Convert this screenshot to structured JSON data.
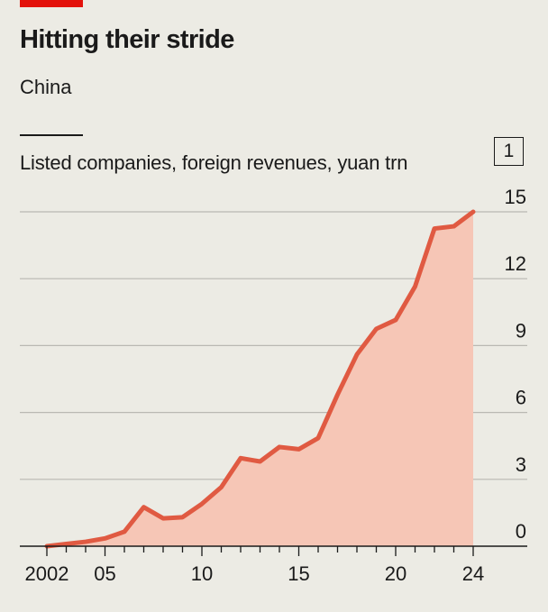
{
  "header": {
    "title": "Hitting their stride",
    "subtitle": "China",
    "description": "Listed companies, foreign revenues, yuan trn",
    "chart_number": "1"
  },
  "colors": {
    "accent_red": "#e3120b",
    "line": "#e05a42",
    "area": "#f6c6b6",
    "background": "#ecebe4",
    "grid": "#b9b8b2"
  },
  "chart_data": {
    "type": "area",
    "title": "Hitting their stride",
    "subtitle": "China",
    "ylabel": "Listed companies, foreign revenues, yuan trn",
    "xlabel": "",
    "ylim": [
      0,
      15
    ],
    "xlim": [
      2002,
      2024
    ],
    "y_ticks": [
      0,
      3,
      6,
      9,
      12,
      15
    ],
    "y_tick_labels": [
      "0",
      "3",
      "6",
      "9",
      "12",
      "15"
    ],
    "x_ticks": [
      2002,
      2005,
      2010,
      2015,
      2020,
      2024
    ],
    "x_tick_labels": [
      "2002",
      "05",
      "10",
      "15",
      "20",
      "24"
    ],
    "grid": true,
    "y_axis_side": "right",
    "series": [
      {
        "name": "Foreign revenues",
        "x": [
          2002,
          2003,
          2004,
          2005,
          2006,
          2007,
          2008,
          2009,
          2010,
          2011,
          2012,
          2013,
          2014,
          2015,
          2016,
          2017,
          2018,
          2019,
          2020,
          2021,
          2022,
          2023,
          2024
        ],
        "values": [
          0.0,
          0.1,
          0.2,
          0.35,
          0.65,
          1.75,
          1.25,
          1.3,
          1.9,
          2.65,
          3.95,
          3.8,
          4.45,
          4.35,
          4.85,
          6.8,
          8.6,
          9.75,
          10.15,
          11.65,
          14.25,
          14.35,
          15.0
        ]
      }
    ]
  }
}
